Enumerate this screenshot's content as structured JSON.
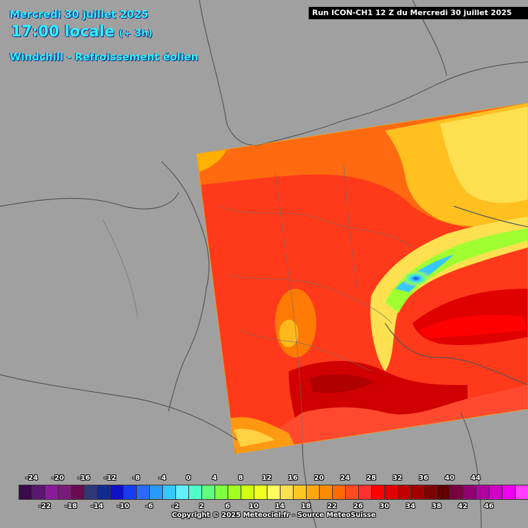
{
  "header": {
    "date": "Mercredi 30 juillet 2025",
    "time": "17:00 locale",
    "offset": "(+ 3h)",
    "variable": "Windchill - Refroissement éolien"
  },
  "run_label": "Run ICON-CH1 12 Z du Mercredi 30 juillet 2025",
  "legend": {
    "colors": [
      "#3a0a4a",
      "#5a1670",
      "#8a1a9a",
      "#7a1a7a",
      "#6a0a50",
      "#303878",
      "#102a90",
      "#1010c8",
      "#1a3cf0",
      "#2a6aff",
      "#2a9aff",
      "#38c8ff",
      "#60f0ff",
      "#50ffc8",
      "#60ff80",
      "#80ff40",
      "#a0ff20",
      "#d0ff10",
      "#f0ff20",
      "#ffff60",
      "#ffe050",
      "#ffc820",
      "#ffa810",
      "#ff8c00",
      "#ff6a00",
      "#ff4a20",
      "#ff3030",
      "#ff0000",
      "#e00000",
      "#c00000",
      "#a00000",
      "#800000",
      "#600000",
      "#7a0040",
      "#900070",
      "#b000a0",
      "#d000c8",
      "#f000f0",
      "#ff40ff",
      "#ff80ff"
    ],
    "top_ticks": [
      "-24",
      "-20",
      "-16",
      "-12",
      "-8",
      "-4",
      "0",
      "4",
      "8",
      "12",
      "16",
      "20",
      "24",
      "28",
      "32",
      "36",
      "40",
      "44"
    ],
    "bottom_ticks": [
      "-22",
      "-18",
      "-14",
      "-10",
      "-6",
      "-2",
      "2",
      "6",
      "10",
      "14",
      "18",
      "22",
      "26",
      "30",
      "34",
      "38",
      "42",
      "46"
    ]
  },
  "copyright": "Copyright © 2025 Meteociel.fr - Source MeteoSuisse"
}
